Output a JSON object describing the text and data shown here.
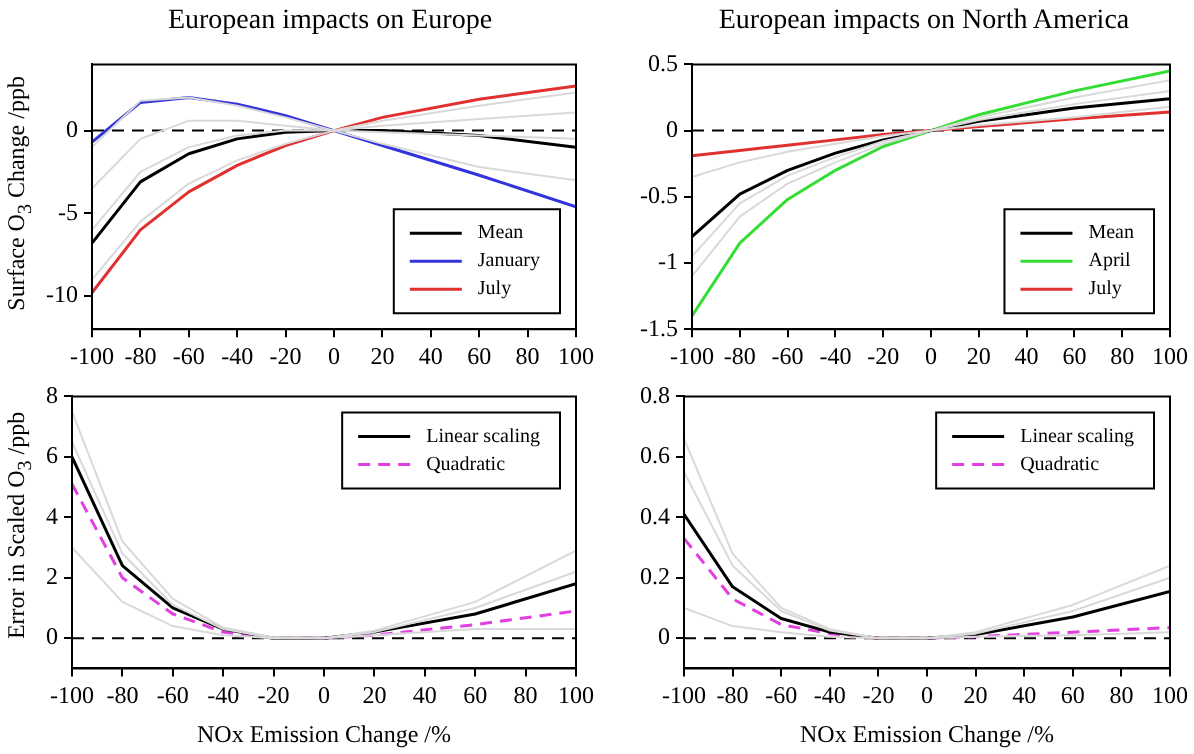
{
  "chart_data": [
    {
      "type": "line",
      "title": "European impacts on Europe",
      "ylabel": "Surface O$_{3}$ Change /ppb",
      "x": [
        -100,
        -80,
        -60,
        -40,
        -20,
        0,
        20,
        60,
        100
      ],
      "xlim": [
        -100,
        100
      ],
      "xticks": [
        -100,
        -80,
        -60,
        -40,
        -20,
        0,
        20,
        40,
        60,
        80,
        100
      ],
      "ylim": [
        -12,
        4
      ],
      "yticks": [
        -10,
        -5,
        0
      ],
      "legend": "bottom right",
      "marker": "none",
      "grid": false,
      "ref_lines": [
        {
          "axis": "y",
          "value": 0,
          "line_style": "dashed",
          "color": "#000000"
        }
      ],
      "series": [
        {
          "color": "#d9d9d9",
          "values": [
            -3.5,
            -0.5,
            0.6,
            0.6,
            0.3,
            0,
            -0.1,
            -0.3,
            -0.5
          ]
        },
        {
          "color": "#d9d9d9",
          "values": [
            -9,
            -5.5,
            -3.2,
            -1.8,
            -0.8,
            0,
            0.6,
            1.5,
            2.3
          ]
        },
        {
          "color": "#d9d9d9",
          "values": [
            -6,
            -2.5,
            -1,
            -0.3,
            0,
            0,
            0.3,
            0.7,
            1.1
          ]
        },
        {
          "color": "#d9d9d9",
          "values": [
            -1,
            1.8,
            2,
            1.5,
            0.8,
            0,
            -0.8,
            -2.2,
            -3
          ]
        },
        {
          "name": "Mean",
          "color": "#000000",
          "values": [
            -6.8,
            -3.1,
            -1.4,
            -0.5,
            -0.1,
            0,
            0,
            -0.3,
            -1
          ]
        },
        {
          "name": "January",
          "color": "#3333dd",
          "values": [
            -0.7,
            1.7,
            2,
            1.6,
            0.9,
            0,
            -0.9,
            -2.7,
            -4.6
          ]
        },
        {
          "name": "July",
          "color": "#e03030",
          "values": [
            -9.8,
            -6,
            -3.7,
            -2.1,
            -0.9,
            0,
            0.8,
            1.9,
            2.7
          ]
        }
      ]
    },
    {
      "type": "line",
      "title": "European impacts on North America",
      "x": [
        -100,
        -80,
        -60,
        -40,
        -20,
        0,
        20,
        60,
        100
      ],
      "xlim": [
        -100,
        100
      ],
      "xticks": [
        -100,
        -80,
        -60,
        -40,
        -20,
        0,
        20,
        40,
        60,
        80,
        100
      ],
      "ylim": [
        -1.5,
        0.5
      ],
      "yticks": [
        -1.5,
        -1,
        -0.5,
        0,
        0.5
      ],
      "legend": "bottom right",
      "marker": "none",
      "grid": false,
      "ref_lines": [
        {
          "axis": "y",
          "value": 0,
          "line_style": "dashed",
          "color": "#000000"
        }
      ],
      "series": [
        {
          "color": "#d9d9d9",
          "values": [
            -0.35,
            -0.24,
            -0.16,
            -0.1,
            -0.04,
            0,
            0.04,
            0.1,
            0.18
          ]
        },
        {
          "color": "#d9d9d9",
          "values": [
            -1.1,
            -0.65,
            -0.4,
            -0.24,
            -0.1,
            0,
            0.1,
            0.25,
            0.38
          ]
        },
        {
          "color": "#d9d9d9",
          "values": [
            -0.95,
            -0.55,
            -0.34,
            -0.2,
            -0.08,
            0,
            0.08,
            0.2,
            0.3
          ]
        },
        {
          "name": "Mean",
          "color": "#000000",
          "values": [
            -0.8,
            -0.48,
            -0.3,
            -0.17,
            -0.07,
            0,
            0.07,
            0.17,
            0.24
          ]
        },
        {
          "name": "April",
          "color": "#33dd33",
          "values": [
            -1.4,
            -0.85,
            -0.52,
            -0.3,
            -0.12,
            0,
            0.12,
            0.3,
            0.45
          ]
        },
        {
          "name": "July",
          "color": "#e03030",
          "values": [
            -0.19,
            -0.15,
            -0.11,
            -0.07,
            -0.03,
            0,
            0.03,
            0.09,
            0.14
          ]
        }
      ]
    },
    {
      "type": "line",
      "xlabel": "NOx Emission Change /%",
      "ylabel": "Error in Scaled O$_{3}$ /ppb",
      "x": [
        -100,
        -80,
        -60,
        -40,
        -20,
        0,
        20,
        60,
        100
      ],
      "xlim": [
        -100,
        100
      ],
      "xticks": [
        -100,
        -80,
        -60,
        -40,
        -20,
        0,
        20,
        40,
        60,
        80,
        100
      ],
      "ylim": [
        -1,
        8
      ],
      "yticks": [
        0,
        2,
        4,
        6,
        8
      ],
      "legend": "top right",
      "marker": "none",
      "grid": false,
      "ref_lines": [
        {
          "axis": "y",
          "value": 0,
          "line_style": "dashed",
          "color": "#000000"
        }
      ],
      "series": [
        {
          "color": "#d9d9d9",
          "values": [
            7.5,
            3.2,
            1.3,
            0.35,
            0.02,
            0,
            0.25,
            1.2,
            2.9
          ]
        },
        {
          "color": "#d9d9d9",
          "values": [
            6.5,
            2.8,
            1.1,
            0.3,
            0,
            0,
            0.2,
            1,
            2.2
          ]
        },
        {
          "color": "#d9d9d9",
          "values": [
            3,
            1.2,
            0.4,
            0.1,
            0,
            0,
            0.1,
            0.3,
            0.3
          ]
        },
        {
          "name": "Linear scaling",
          "color": "#000000",
          "values": [
            6,
            2.4,
            1,
            0.3,
            0,
            0,
            0.2,
            0.8,
            1.8
          ]
        },
        {
          "name": "Quadratic",
          "color": "#e040e0",
          "line_style": "dashed",
          "values": [
            5.1,
            2,
            0.8,
            0.2,
            0,
            0,
            0.1,
            0.45,
            0.9
          ]
        }
      ]
    },
    {
      "type": "line",
      "xlabel": "NOx Emission Change /%",
      "x": [
        -100,
        -80,
        -60,
        -40,
        -20,
        0,
        20,
        60,
        100
      ],
      "xlim": [
        -100,
        100
      ],
      "xticks": [
        -100,
        -80,
        -60,
        -40,
        -20,
        0,
        20,
        40,
        60,
        80,
        100
      ],
      "ylim": [
        -0.1,
        0.8
      ],
      "yticks": [
        0,
        0.2,
        0.4,
        0.6,
        0.8
      ],
      "legend": "top right",
      "marker": "none",
      "grid": false,
      "ref_lines": [
        {
          "axis": "y",
          "value": 0,
          "line_style": "dashed",
          "color": "#000000"
        }
      ],
      "series": [
        {
          "color": "#d9d9d9",
          "values": [
            0.66,
            0.28,
            0.1,
            0.03,
            0,
            0,
            0.02,
            0.11,
            0.24
          ]
        },
        {
          "color": "#d9d9d9",
          "values": [
            0.55,
            0.24,
            0.09,
            0.025,
            0,
            0,
            0.015,
            0.09,
            0.2
          ]
        },
        {
          "color": "#d9d9d9",
          "values": [
            0.1,
            0.04,
            0.02,
            0.005,
            0,
            0,
            0.005,
            0.01,
            0.02
          ]
        },
        {
          "name": "Linear scaling",
          "color": "#000000",
          "values": [
            0.41,
            0.17,
            0.065,
            0.02,
            0,
            0,
            0.012,
            0.07,
            0.155
          ]
        },
        {
          "name": "Quadratic",
          "color": "#e040e0",
          "line_style": "dashed",
          "values": [
            0.33,
            0.13,
            0.045,
            0.015,
            0,
            0,
            0.005,
            0.02,
            0.035
          ]
        }
      ]
    }
  ]
}
